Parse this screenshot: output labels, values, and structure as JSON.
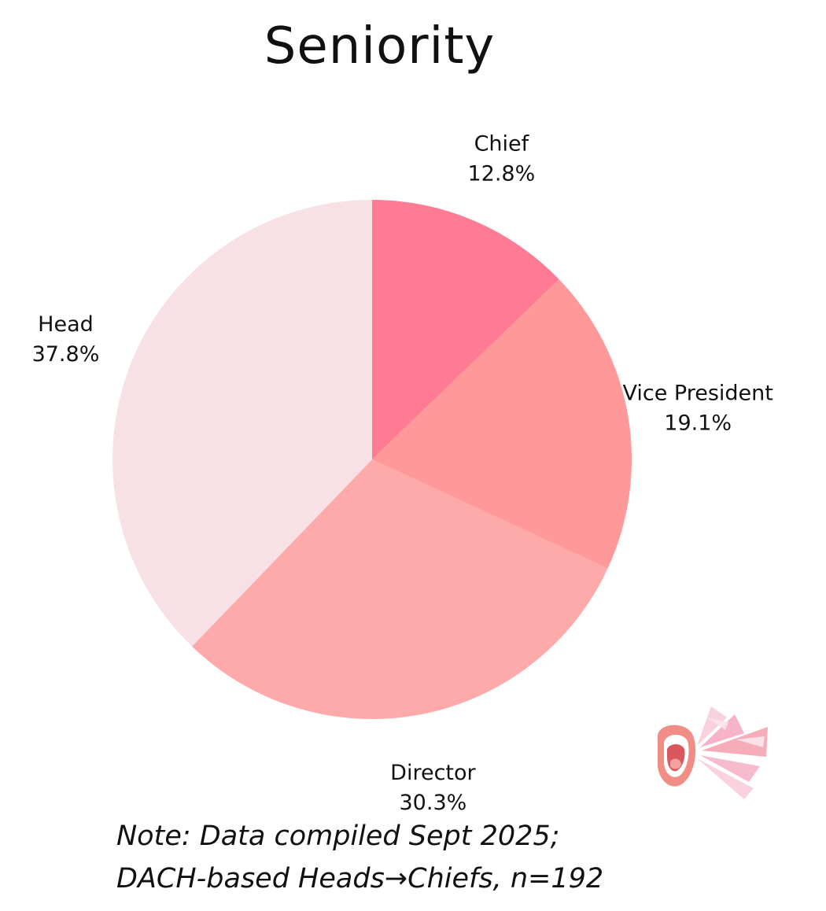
{
  "chart_data": {
    "type": "pie",
    "title": "Seniority",
    "slices": [
      {
        "label": "Chief",
        "value": 12.8,
        "value_label": "12.8%",
        "color": "#ff7b93"
      },
      {
        "label": "Vice President",
        "value": 19.1,
        "value_label": "19.1%",
        "color": "#ff9898"
      },
      {
        "label": "Director",
        "value": 30.3,
        "value_label": "30.3%",
        "color": "#ffaaaa"
      },
      {
        "label": "Head",
        "value": 37.8,
        "value_label": "37.8%",
        "color": "#f8e1e5"
      }
    ],
    "start": "12 o'clock",
    "direction": "clockwise",
    "legend": "none"
  },
  "note": {
    "line1": "Note: Data compiled Sept 2025;",
    "line2": "DACH-based Heads→Chiefs, n=192"
  },
  "logo": {
    "icon": "shouting-mouth-icon"
  }
}
